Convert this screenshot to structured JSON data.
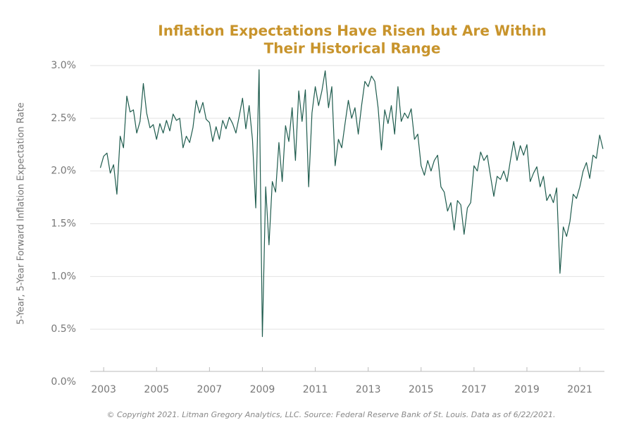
{
  "chart_data": {
    "type": "line",
    "title": "Inflation Expectations Have Risen but Are Within",
    "subtitle": "Their Historical Range",
    "y_label": "5-Year, 5-Year Forward Inflation Expectation Rate",
    "footnote": "© Copyright 2021. Litman Gregory Analytics, LLC. Source: Federal Reserve Bank of St. Louis. Data as of 6/22/2021.",
    "color": "#1f5c4e",
    "grid": true,
    "xlim": [
      2002.49,
      2021.93
    ],
    "xticks": [
      2003,
      2005,
      2007,
      2009,
      2011,
      2013,
      2015,
      2017,
      2019,
      2021
    ],
    "ylim": [
      0,
      3
    ],
    "yticks": [
      {
        "value": 0,
        "label": "0.0%"
      },
      {
        "value": 0.5,
        "label": "0.5%"
      },
      {
        "value": 1,
        "label": "1.0%"
      },
      {
        "value": 1.5,
        "label": "1.5%"
      },
      {
        "value": 2,
        "label": "2.0%"
      },
      {
        "value": 2.5,
        "label": "2.5%"
      },
      {
        "value": 3,
        "label": "3.0%"
      }
    ],
    "x": [
      2002.875,
      2003,
      2003.125,
      2003.25,
      2003.375,
      2003.5,
      2003.625,
      2003.75,
      2003.875,
      2004,
      2004.125,
      2004.25,
      2004.375,
      2004.5,
      2004.625,
      2004.75,
      2004.875,
      2005,
      2005.125,
      2005.25,
      2005.375,
      2005.5,
      2005.625,
      2005.75,
      2005.875,
      2006,
      2006.125,
      2006.25,
      2006.375,
      2006.5,
      2006.625,
      2006.75,
      2006.875,
      2007,
      2007.125,
      2007.25,
      2007.375,
      2007.5,
      2007.625,
      2007.75,
      2007.875,
      2008,
      2008.125,
      2008.25,
      2008.375,
      2008.5,
      2008.625,
      2008.75,
      2008.875,
      2009,
      2009.125,
      2009.25,
      2009.375,
      2009.5,
      2009.625,
      2009.75,
      2009.875,
      2010,
      2010.125,
      2010.25,
      2010.375,
      2010.5,
      2010.625,
      2010.75,
      2010.875,
      2011,
      2011.125,
      2011.25,
      2011.375,
      2011.5,
      2011.625,
      2011.75,
      2011.875,
      2012,
      2012.125,
      2012.25,
      2012.375,
      2012.5,
      2012.625,
      2012.75,
      2012.875,
      2013,
      2013.125,
      2013.25,
      2013.375,
      2013.5,
      2013.625,
      2013.75,
      2013.875,
      2014,
      2014.125,
      2014.25,
      2014.375,
      2014.5,
      2014.625,
      2014.75,
      2014.875,
      2015,
      2015.125,
      2015.25,
      2015.375,
      2015.5,
      2015.625,
      2015.75,
      2015.875,
      2016,
      2016.125,
      2016.25,
      2016.375,
      2016.5,
      2016.625,
      2016.75,
      2016.875,
      2017,
      2017.125,
      2017.25,
      2017.375,
      2017.5,
      2017.625,
      2017.75,
      2017.875,
      2018,
      2018.125,
      2018.25,
      2018.375,
      2018.5,
      2018.625,
      2018.75,
      2018.875,
      2019,
      2019.125,
      2019.25,
      2019.375,
      2019.5,
      2019.625,
      2019.75,
      2019.875,
      2020,
      2020.125,
      2020.25,
      2020.375,
      2020.5,
      2020.625,
      2020.75,
      2020.875,
      2021,
      2021.125,
      2021.25,
      2021.375,
      2021.5,
      2021.625,
      2021.75,
      2021.875
    ],
    "values": [
      2.03,
      2.14,
      2.17,
      1.98,
      2.06,
      1.78,
      2.33,
      2.22,
      2.71,
      2.56,
      2.58,
      2.36,
      2.47,
      2.83,
      2.55,
      2.41,
      2.44,
      2.3,
      2.45,
      2.36,
      2.48,
      2.38,
      2.54,
      2.48,
      2.5,
      2.22,
      2.33,
      2.27,
      2.41,
      2.67,
      2.55,
      2.65,
      2.49,
      2.46,
      2.28,
      2.42,
      2.3,
      2.48,
      2.4,
      2.51,
      2.45,
      2.36,
      2.52,
      2.69,
      2.4,
      2.62,
      2.3,
      1.65,
      2.96,
      0.43,
      1.85,
      1.3,
      1.9,
      1.8,
      2.27,
      1.9,
      2.43,
      2.28,
      2.6,
      2.1,
      2.76,
      2.47,
      2.77,
      1.85,
      2.55,
      2.8,
      2.62,
      2.76,
      2.95,
      2.6,
      2.8,
      2.05,
      2.3,
      2.22,
      2.45,
      2.67,
      2.5,
      2.6,
      2.35,
      2.62,
      2.85,
      2.8,
      2.9,
      2.85,
      2.6,
      2.2,
      2.58,
      2.45,
      2.62,
      2.35,
      2.8,
      2.47,
      2.55,
      2.5,
      2.59,
      2.3,
      2.35,
      2.05,
      1.96,
      2.1,
      2.0,
      2.1,
      2.15,
      1.85,
      1.8,
      1.62,
      1.7,
      1.44,
      1.72,
      1.68,
      1.4,
      1.65,
      1.7,
      2.05,
      2.0,
      2.18,
      2.1,
      2.15,
      1.95,
      1.76,
      1.95,
      1.92,
      2.0,
      1.9,
      2.1,
      2.28,
      2.1,
      2.24,
      2.15,
      2.25,
      1.9,
      1.98,
      2.04,
      1.85,
      1.95,
      1.72,
      1.78,
      1.7,
      1.84,
      1.03,
      1.47,
      1.38,
      1.52,
      1.78,
      1.74,
      1.85,
      2.0,
      2.08,
      1.93,
      2.15,
      2.12,
      2.34,
      2.21
    ]
  }
}
